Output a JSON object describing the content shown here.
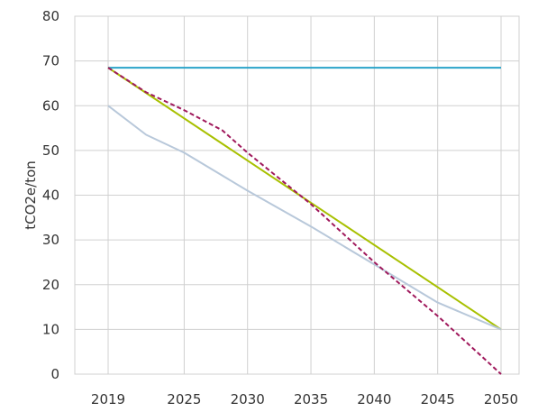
{
  "chart_data": {
    "type": "line",
    "title": "",
    "xlabel": "",
    "ylabel": "tCO2e/ton",
    "categories": [
      "2019",
      "2025",
      "2030",
      "2035",
      "2040",
      "2045",
      "2050"
    ],
    "x_year_range": [
      2019,
      2050
    ],
    "ylim": [
      0,
      80
    ],
    "yticks": [
      "0",
      "10",
      "20",
      "30",
      "40",
      "50",
      "60",
      "70",
      "80"
    ],
    "grid": true,
    "legend": "none",
    "series": [
      {
        "color": "#29a3c9",
        "style": "solid",
        "points": [
          [
            2019,
            68.5
          ],
          [
            2050,
            68.5
          ]
        ]
      },
      {
        "color": "#a8c000",
        "style": "solid",
        "points": [
          [
            2019,
            68.5
          ],
          [
            2050,
            10
          ]
        ]
      },
      {
        "color": "#b8c8da",
        "style": "solid",
        "points": [
          [
            2019,
            60
          ],
          [
            2022,
            53.5
          ],
          [
            2025,
            49.5
          ],
          [
            2030,
            41
          ],
          [
            2035,
            33
          ],
          [
            2040,
            24.5
          ],
          [
            2045,
            16
          ],
          [
            2050,
            10
          ]
        ]
      },
      {
        "color": "#a0195c",
        "style": "dashed",
        "points": [
          [
            2019,
            68.5
          ],
          [
            2022,
            63
          ],
          [
            2025,
            59
          ],
          [
            2028,
            54.5
          ],
          [
            2030,
            49.5
          ],
          [
            2035,
            38
          ],
          [
            2040,
            25
          ],
          [
            2045,
            13
          ],
          [
            2050,
            0
          ]
        ]
      }
    ]
  }
}
